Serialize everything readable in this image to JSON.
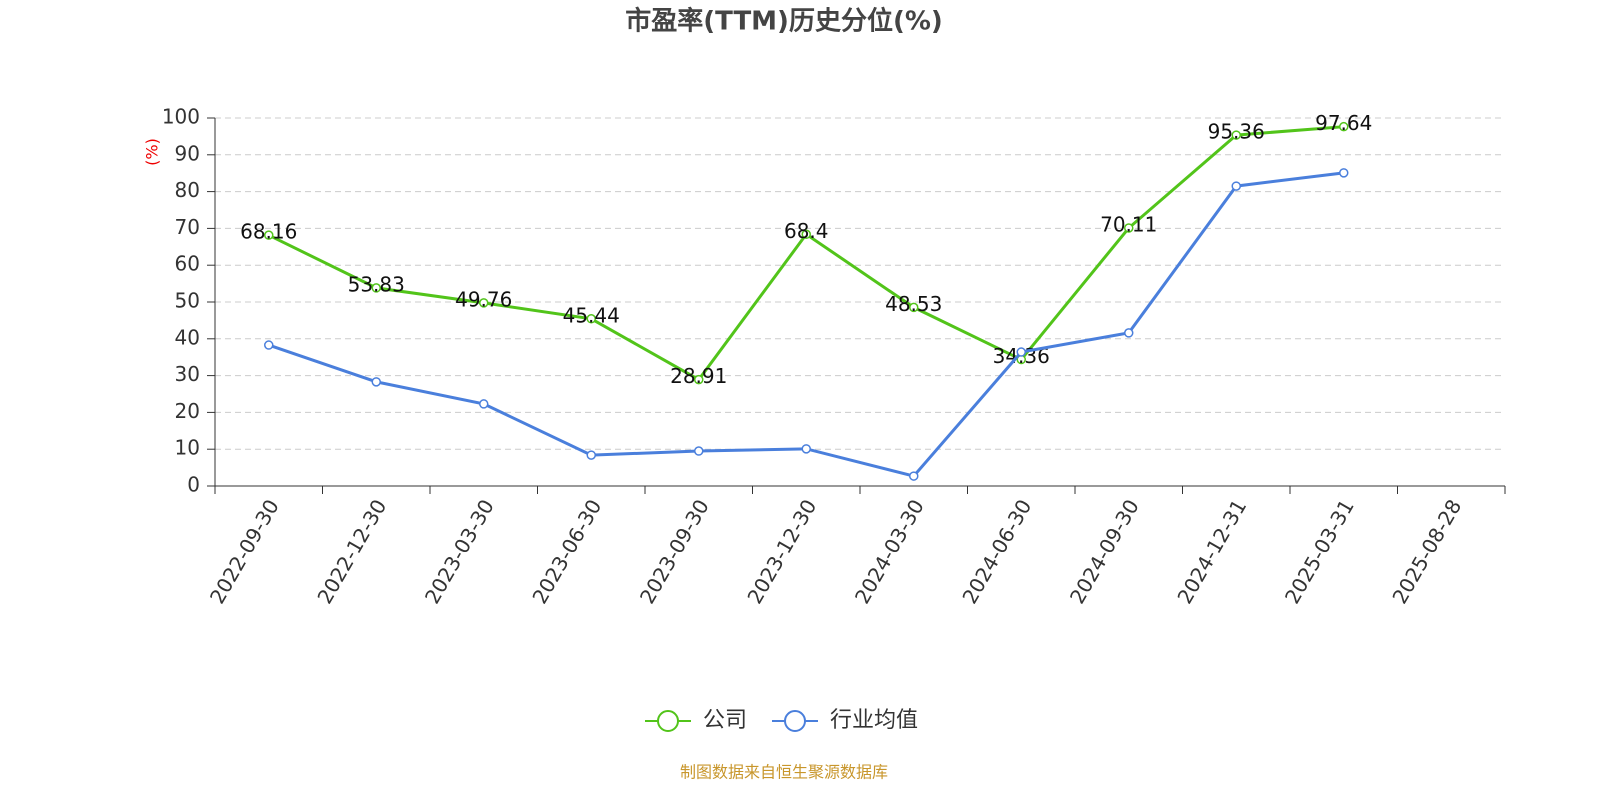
{
  "chart_data": {
    "type": "line",
    "title": "市盈率(TTM)历史分位(%)",
    "y_label": "(%)",
    "source": "制图数据来自恒生聚源数据库",
    "categories": [
      "2022-09-30",
      "2022-12-30",
      "2023-03-30",
      "2023-06-30",
      "2023-09-30",
      "2023-12-30",
      "2024-03-30",
      "2024-06-30",
      "2024-09-30",
      "2024-12-31",
      "2025-03-31",
      "2025-08-28"
    ],
    "series": [
      {
        "name": "公司",
        "color": "#52c41a",
        "labels": true,
        "values": [
          68.16,
          53.83,
          49.76,
          45.44,
          28.91,
          68.4,
          48.53,
          34.36,
          70.11,
          95.36,
          97.64,
          null
        ]
      },
      {
        "name": "行业均值",
        "color": "#4a7fdc",
        "labels": false,
        "values": [
          38.3,
          28.3,
          22.3,
          8.4,
          9.5,
          10.1,
          2.7,
          36.4,
          41.6,
          81.5,
          85.1,
          null
        ]
      }
    ],
    "ylim": [
      0,
      100
    ],
    "yticks": [
      0,
      10,
      20,
      30,
      40,
      50,
      60,
      70,
      80,
      90,
      100
    ],
    "grid": true
  }
}
